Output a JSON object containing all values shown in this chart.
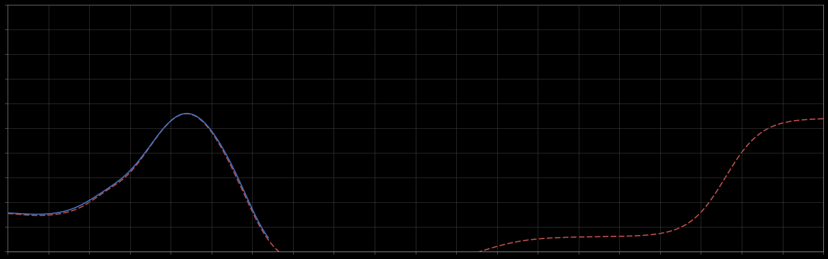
{
  "background_color": "#000000",
  "grid_color": "#444444",
  "line1_color": "#4472c4",
  "line2_color": "#c0504d",
  "line1_style": "solid",
  "line2_style": "dashed",
  "line_width": 1.2,
  "x_min": 0,
  "x_max": 100,
  "y_min": 0.0,
  "y_max": 10.0,
  "title": "",
  "xlabel": "",
  "ylabel": "",
  "grid_x_major": 5,
  "grid_y_major": 1
}
